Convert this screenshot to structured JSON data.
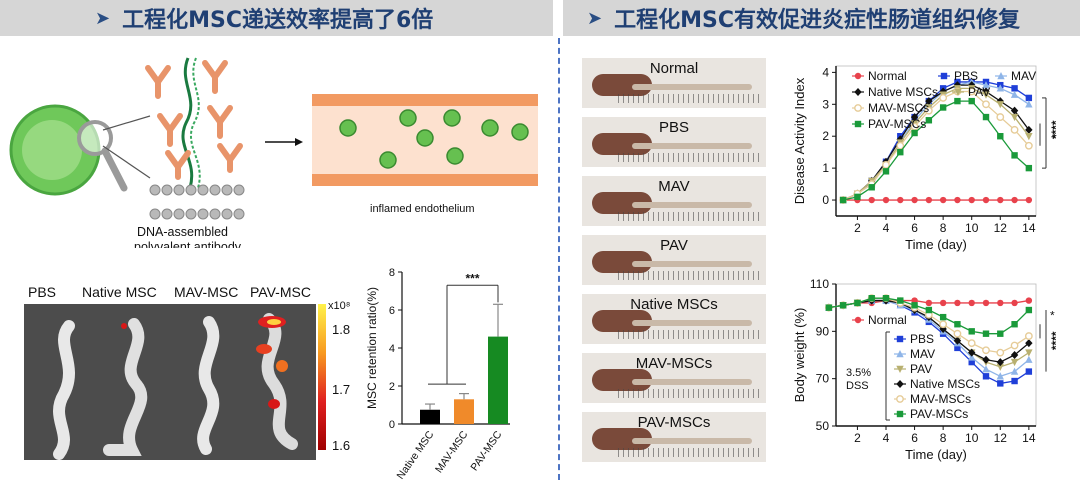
{
  "header": {
    "left_title": "工程化MSC递送效率提高了6倍",
    "right_title": "工程化MSC有效促进炎症性肠道组织修复"
  },
  "schematic": {
    "antibody_caption_line1": "DNA-assembled",
    "antibody_caption_line2": "polyvalent antibody",
    "vessel_caption": "inflamed endothelium"
  },
  "imaging": {
    "labels": [
      "PBS",
      "Native MSC",
      "MAV-MSC",
      "PAV-MSC"
    ],
    "colorbar_unit": "x10⁸",
    "colorbar_ticks": [
      "1.8",
      "1.7",
      "1.6"
    ]
  },
  "colon_photos": {
    "labels": [
      "Normal",
      "PBS",
      "MAV",
      "PAV",
      "Native MSCs",
      "MAV-MSCs",
      "PAV-MSCs"
    ]
  },
  "colors": {
    "Normal": "#e8424c",
    "PBS": "#1f3fd8",
    "MAV": "#8fb5e8",
    "PAV": "#b8b070",
    "Native MSCs": "#111111",
    "MAV-MSCs": "#e6cc98",
    "PAV-MSCs": "#1a9a3a",
    "retention_bars": [
      "#000000",
      "#f08a2a",
      "#168a22"
    ]
  },
  "chart_data": [
    {
      "type": "bar",
      "ylabel": "MSC retention ratio(%)",
      "categories": [
        "Native MSC",
        "MAV-MSC",
        "PAV-MSC"
      ],
      "values": [
        0.75,
        1.3,
        4.6
      ],
      "errors": [
        0.3,
        0.3,
        1.7
      ],
      "ylim": [
        0,
        8
      ],
      "yticks": [
        "0",
        "2",
        "4",
        "6",
        "8"
      ],
      "significance": "***"
    },
    {
      "type": "line",
      "ylabel": "Disease Activity Index",
      "xlabel": "Time (day)",
      "xlim": [
        0.5,
        14.5
      ],
      "ylim": [
        -0.5,
        4.2
      ],
      "xticks": [
        "2",
        "4",
        "6",
        "8",
        "10",
        "12",
        "14"
      ],
      "yticks": [
        "0",
        "1",
        "2",
        "3",
        "4"
      ],
      "x": [
        1,
        2,
        3,
        4,
        5,
        6,
        7,
        8,
        9,
        10,
        11,
        12,
        13,
        14
      ],
      "legend": [
        "Normal",
        "PBS",
        "MAV",
        "Native MSCs",
        "PAV",
        "MAV-MSCs",
        "PAV-MSCs"
      ],
      "series": [
        {
          "name": "Normal",
          "marker": "circle",
          "values": [
            0,
            0,
            0,
            0,
            0,
            0,
            0,
            0,
            0,
            0,
            0,
            0,
            0,
            0
          ]
        },
        {
          "name": "PBS",
          "marker": "square",
          "values": [
            0,
            0.2,
            0.6,
            1.2,
            2.0,
            2.6,
            3.1,
            3.5,
            3.7,
            3.7,
            3.7,
            3.6,
            3.5,
            3.2
          ]
        },
        {
          "name": "MAV",
          "marker": "triangle",
          "values": [
            0,
            0.2,
            0.5,
            1.1,
            1.8,
            2.5,
            3.0,
            3.4,
            3.6,
            3.7,
            3.6,
            3.5,
            3.3,
            3.0
          ]
        },
        {
          "name": "Native MSCs",
          "marker": "diamond",
          "values": [
            0,
            0.2,
            0.6,
            1.2,
            1.9,
            2.6,
            3.1,
            3.4,
            3.6,
            3.6,
            3.4,
            3.1,
            2.8,
            2.2
          ]
        },
        {
          "name": "PAV",
          "marker": "tri-down",
          "values": [
            0,
            0.2,
            0.6,
            1.1,
            1.8,
            2.4,
            2.9,
            3.3,
            3.5,
            3.5,
            3.3,
            3.0,
            2.6,
            2.0
          ]
        },
        {
          "name": "MAV-MSCs",
          "marker": "circle-open",
          "values": [
            0,
            0.2,
            0.5,
            1.1,
            1.7,
            2.3,
            2.8,
            3.2,
            3.4,
            3.4,
            3.0,
            2.6,
            2.2,
            1.7
          ]
        },
        {
          "name": "PAV-MSCs",
          "marker": "square",
          "values": [
            0,
            0.1,
            0.4,
            0.9,
            1.5,
            2.1,
            2.5,
            2.9,
            3.1,
            3.1,
            2.6,
            2.0,
            1.4,
            1.0
          ]
        }
      ],
      "annotations": [
        "*",
        "****"
      ]
    },
    {
      "type": "line",
      "ylabel": "Body weight (%)",
      "xlabel": "Time (day)",
      "xlim": [
        0.5,
        14.5
      ],
      "ylim": [
        50,
        110
      ],
      "xticks": [
        "2",
        "4",
        "6",
        "8",
        "10",
        "12",
        "14"
      ],
      "yticks": [
        "50",
        "70",
        "90",
        "110"
      ],
      "x": [
        0,
        1,
        2,
        3,
        4,
        5,
        6,
        7,
        8,
        9,
        10,
        11,
        12,
        13,
        14
      ],
      "legend": [
        "Normal",
        "PBS",
        "MAV",
        "PAV",
        "Native MSCs",
        "MAV-MSCs",
        "PAV-MSCs"
      ],
      "bracket_label_line1": "3.5%",
      "bracket_label_line2": "DSS",
      "series": [
        {
          "name": "Normal",
          "marker": "circle",
          "values": [
            100,
            101,
            102,
            102,
            103,
            103,
            103,
            102,
            102,
            102,
            102,
            102,
            102,
            102,
            103
          ]
        },
        {
          "name": "PBS",
          "marker": "square",
          "values": [
            100,
            101,
            102,
            103,
            103,
            101,
            98,
            94,
            89,
            83,
            77,
            71,
            68,
            69,
            73
          ]
        },
        {
          "name": "MAV",
          "marker": "triangle",
          "values": [
            100,
            101,
            102,
            103,
            103,
            101,
            99,
            95,
            90,
            85,
            79,
            74,
            71,
            73,
            78
          ]
        },
        {
          "name": "PAV",
          "marker": "tri-down",
          "values": [
            100,
            101,
            102,
            103,
            103,
            102,
            99,
            96,
            91,
            86,
            81,
            77,
            75,
            77,
            81
          ]
        },
        {
          "name": "Native MSCs",
          "marker": "diamond",
          "values": [
            100,
            101,
            102,
            103,
            103,
            102,
            99,
            96,
            91,
            86,
            81,
            78,
            77,
            80,
            85
          ]
        },
        {
          "name": "MAV-MSCs",
          "marker": "circle-open",
          "values": [
            100,
            101,
            102,
            104,
            104,
            102,
            100,
            97,
            93,
            89,
            85,
            82,
            81,
            84,
            88
          ]
        },
        {
          "name": "PAV-MSCs",
          "marker": "square",
          "values": [
            100,
            101,
            102,
            104,
            104,
            103,
            101,
            99,
            96,
            93,
            90,
            89,
            89,
            93,
            99
          ]
        }
      ],
      "annotations": [
        "*",
        "****"
      ]
    }
  ]
}
